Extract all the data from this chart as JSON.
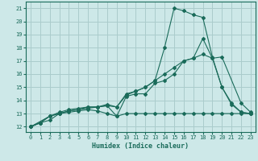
{
  "xlabel": "Humidex (Indice chaleur)",
  "bg_color": "#cde8e8",
  "grid_color": "#aacccc",
  "line_color": "#1a6b5a",
  "xlim": [
    -0.5,
    23.5
  ],
  "ylim": [
    11.6,
    21.5
  ],
  "xticks": [
    0,
    1,
    2,
    3,
    4,
    5,
    6,
    7,
    8,
    9,
    10,
    11,
    12,
    13,
    14,
    15,
    16,
    17,
    18,
    19,
    20,
    21,
    22,
    23
  ],
  "yticks": [
    12,
    13,
    14,
    15,
    16,
    17,
    18,
    19,
    20,
    21
  ],
  "series": [
    {
      "x": [
        0,
        1,
        2,
        3,
        4,
        5,
        6,
        7,
        8,
        9,
        10,
        11,
        12,
        13,
        14,
        15,
        16,
        17,
        18,
        19,
        20,
        21,
        22,
        23
      ],
      "y": [
        12,
        12.3,
        12.5,
        13.0,
        13.1,
        13.2,
        13.3,
        13.2,
        13.0,
        12.8,
        13.0,
        13.0,
        13.0,
        13.0,
        13.0,
        13.0,
        13.0,
        13.0,
        13.0,
        13.0,
        13.0,
        13.0,
        13.0,
        13.0
      ]
    },
    {
      "x": [
        0,
        2,
        3,
        4,
        5,
        6,
        7,
        8,
        9,
        10,
        11,
        12,
        13,
        14,
        15,
        16,
        17,
        18,
        19,
        20,
        22,
        23
      ],
      "y": [
        12,
        12.8,
        13.0,
        13.2,
        13.3,
        13.4,
        13.5,
        13.6,
        13.5,
        14.5,
        14.7,
        15.0,
        15.5,
        16.0,
        16.5,
        17.0,
        17.2,
        17.5,
        17.2,
        17.3,
        13.8,
        13.1
      ]
    },
    {
      "x": [
        0,
        1,
        2,
        3,
        4,
        5,
        6,
        7,
        8,
        9,
        10,
        11,
        12,
        13,
        14,
        15,
        16,
        17,
        18,
        19,
        20,
        21,
        22,
        23
      ],
      "y": [
        12,
        12.3,
        12.8,
        13.0,
        13.2,
        13.3,
        13.5,
        13.5,
        13.6,
        12.8,
        14.3,
        14.5,
        14.5,
        15.3,
        15.5,
        16.0,
        17.0,
        17.2,
        18.7,
        17.2,
        15.0,
        13.7,
        13.1,
        13.0
      ]
    },
    {
      "x": [
        0,
        1,
        2,
        3,
        4,
        5,
        6,
        7,
        8,
        9,
        10,
        11,
        12,
        13,
        14,
        15,
        16,
        17,
        18,
        19,
        20,
        21,
        22,
        23
      ],
      "y": [
        12,
        12.3,
        12.8,
        13.1,
        13.3,
        13.4,
        13.5,
        13.5,
        13.7,
        13.5,
        14.4,
        14.7,
        15.0,
        15.5,
        18.0,
        21.0,
        20.8,
        20.5,
        20.3,
        17.3,
        15.0,
        13.8,
        13.1,
        13.0
      ]
    }
  ]
}
